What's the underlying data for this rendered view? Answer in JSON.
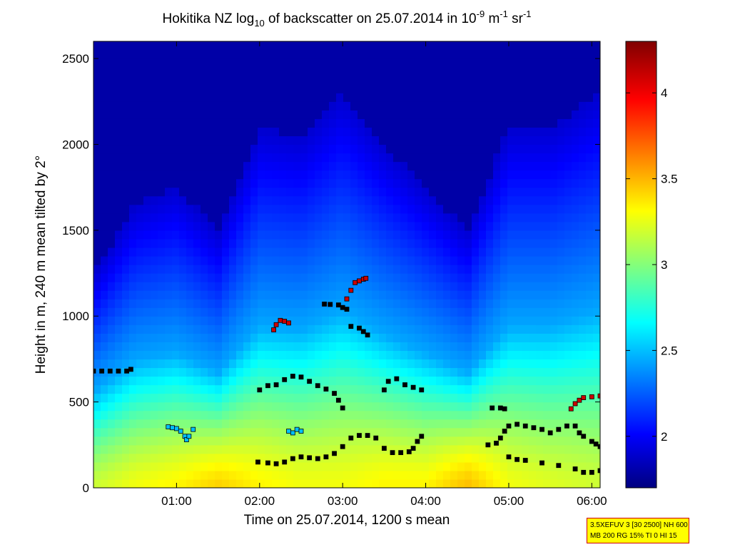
{
  "chart_data": {
    "type": "heatmap",
    "title": {
      "prefix": "Hokitika NZ log",
      "prefix_sub": "10",
      "middle": " of backscatter on 25.07.2014 in 10",
      "exp1": "-9",
      "unit1": " m",
      "exp2": "-1",
      "unit2": " sr",
      "exp3": "-1"
    },
    "xlabel": "Time on 25.07.2014, 1200 s mean",
    "ylabel": "Height in m, 240 m mean tilted by 2°",
    "x_ticks": [
      {
        "value": 1.0,
        "label": "01:00"
      },
      {
        "value": 2.0,
        "label": "02:00"
      },
      {
        "value": 3.0,
        "label": "03:00"
      },
      {
        "value": 4.0,
        "label": "04:00"
      },
      {
        "value": 5.0,
        "label": "05:00"
      },
      {
        "value": 6.0,
        "label": "06:00"
      }
    ],
    "y_ticks": [
      {
        "value": 0,
        "label": "0"
      },
      {
        "value": 500,
        "label": "500"
      },
      {
        "value": 1000,
        "label": "1000"
      },
      {
        "value": 1500,
        "label": "1500"
      },
      {
        "value": 2000,
        "label": "2000"
      },
      {
        "value": 2500,
        "label": "2500"
      }
    ],
    "xlim": [
      0.0,
      6.1
    ],
    "ylim": [
      0,
      2600
    ],
    "colorbar": {
      "clim": [
        1.7,
        4.3
      ],
      "colormap": "jet",
      "ticks": [
        {
          "value": 2,
          "label": "2"
        },
        {
          "value": 2.5,
          "label": "2.5"
        },
        {
          "value": 3,
          "label": "3"
        },
        {
          "value": 3.5,
          "label": "3.5"
        },
        {
          "value": 4,
          "label": "4"
        }
      ]
    },
    "background_levels": {
      "description_hours": [
        0.0,
        0.5,
        1.0,
        1.5,
        2.0,
        2.5,
        3.0,
        3.5,
        4.0,
        4.5,
        5.0,
        5.5,
        6.1
      ],
      "surface_value": [
        3.2,
        3.3,
        3.35,
        3.45,
        3.35,
        3.3,
        3.3,
        3.35,
        3.35,
        3.5,
        3.3,
        3.25,
        3.2
      ],
      "blue_top_height": [
        1250,
        1650,
        1750,
        1500,
        2100,
        2050,
        2300,
        2000,
        1750,
        1500,
        2100,
        2100,
        2300
      ]
    },
    "layers": [
      {
        "color": "#000000",
        "points": [
          [
            0.0,
            680
          ],
          [
            0.1,
            680
          ],
          [
            0.2,
            680
          ],
          [
            0.3,
            680
          ],
          [
            0.4,
            680
          ],
          [
            0.45,
            690
          ]
        ]
      },
      {
        "color": "#00bfff",
        "points": [
          [
            0.9,
            355
          ],
          [
            0.95,
            350
          ],
          [
            1.0,
            345
          ],
          [
            1.05,
            330
          ],
          [
            1.1,
            300
          ],
          [
            1.12,
            280
          ],
          [
            1.15,
            300
          ],
          [
            1.2,
            340
          ]
        ]
      },
      {
        "color": "#000000",
        "points": [
          [
            1.98,
            150
          ],
          [
            2.1,
            145
          ],
          [
            2.2,
            140
          ],
          [
            2.3,
            150
          ],
          [
            2.4,
            170
          ],
          [
            2.5,
            180
          ],
          [
            2.6,
            175
          ],
          [
            2.7,
            170
          ],
          [
            2.8,
            180
          ],
          [
            2.9,
            200
          ],
          [
            3.0,
            240
          ],
          [
            3.1,
            290
          ],
          [
            3.2,
            305
          ],
          [
            3.3,
            305
          ],
          [
            3.4,
            290
          ],
          [
            3.5,
            230
          ],
          [
            3.6,
            205
          ],
          [
            3.7,
            205
          ],
          [
            3.8,
            210
          ],
          [
            3.85,
            230
          ],
          [
            3.9,
            270
          ],
          [
            3.95,
            300
          ]
        ]
      },
      {
        "color": "#000000",
        "points": [
          [
            2.0,
            570
          ],
          [
            2.1,
            595
          ],
          [
            2.2,
            600
          ],
          [
            2.3,
            630
          ],
          [
            2.4,
            650
          ],
          [
            2.5,
            645
          ],
          [
            2.6,
            620
          ],
          [
            2.7,
            595
          ],
          [
            2.8,
            575
          ],
          [
            2.9,
            550
          ],
          [
            2.95,
            510
          ],
          [
            3.0,
            465
          ]
        ]
      },
      {
        "color": "#cc0000",
        "points": [
          [
            2.17,
            920
          ],
          [
            2.2,
            950
          ],
          [
            2.25,
            975
          ],
          [
            2.3,
            970
          ],
          [
            2.35,
            960
          ]
        ]
      },
      {
        "color": "#000000",
        "points": [
          [
            2.78,
            1070
          ],
          [
            2.85,
            1068
          ],
          [
            2.95,
            1065
          ],
          [
            3.0,
            1050
          ],
          [
            3.05,
            1040
          ]
        ]
      },
      {
        "color": "#cc0000",
        "points": [
          [
            3.05,
            1100
          ],
          [
            3.1,
            1150
          ],
          [
            3.15,
            1195
          ],
          [
            3.2,
            1205
          ],
          [
            3.25,
            1215
          ],
          [
            3.28,
            1220
          ]
        ]
      },
      {
        "color": "#000000",
        "points": [
          [
            3.1,
            940
          ],
          [
            3.2,
            930
          ],
          [
            3.25,
            910
          ],
          [
            3.3,
            890
          ]
        ]
      },
      {
        "color": "#000000",
        "points": [
          [
            3.5,
            570
          ],
          [
            3.55,
            620
          ],
          [
            3.65,
            635
          ],
          [
            3.75,
            600
          ],
          [
            3.85,
            585
          ],
          [
            3.95,
            570
          ]
        ]
      },
      {
        "color": "#00bfff",
        "points": [
          [
            2.35,
            330
          ],
          [
            2.4,
            320
          ],
          [
            2.45,
            340
          ],
          [
            2.5,
            330
          ]
        ]
      },
      {
        "color": "#000000",
        "points": [
          [
            4.8,
            465
          ],
          [
            4.9,
            465
          ],
          [
            4.95,
            460
          ]
        ]
      },
      {
        "color": "#000000",
        "points": [
          [
            4.75,
            250
          ],
          [
            4.85,
            260
          ],
          [
            4.9,
            290
          ],
          [
            4.95,
            330
          ],
          [
            5.0,
            360
          ],
          [
            5.1,
            370
          ],
          [
            5.2,
            360
          ],
          [
            5.3,
            350
          ],
          [
            5.4,
            340
          ],
          [
            5.5,
            320
          ],
          [
            5.6,
            340
          ],
          [
            5.7,
            360
          ],
          [
            5.8,
            360
          ],
          [
            5.85,
            320
          ],
          [
            5.9,
            300
          ],
          [
            6.0,
            270
          ],
          [
            6.05,
            255
          ],
          [
            6.1,
            240
          ]
        ]
      },
      {
        "color": "#000000",
        "points": [
          [
            5.0,
            180
          ],
          [
            5.1,
            165
          ],
          [
            5.2,
            160
          ],
          [
            5.4,
            145
          ],
          [
            5.6,
            130
          ],
          [
            5.8,
            110
          ],
          [
            5.9,
            90
          ],
          [
            6.0,
            90
          ],
          [
            6.1,
            100
          ]
        ]
      },
      {
        "color": "#cc0000",
        "points": [
          [
            5.75,
            460
          ],
          [
            5.8,
            490
          ],
          [
            5.85,
            510
          ],
          [
            5.9,
            525
          ],
          [
            6.0,
            530
          ],
          [
            6.1,
            535
          ]
        ]
      }
    ]
  },
  "info_box": {
    "line1": "3.5XEFUV 3 [30 2500] NH 600",
    "line2": "MB 200 RG 15% TI 0 HI 15"
  }
}
